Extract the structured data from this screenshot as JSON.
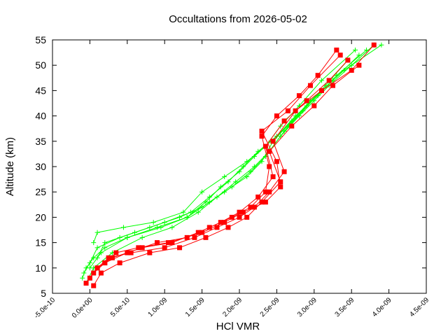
{
  "chart_data": {
    "type": "line",
    "title": "Occultations from 2026-05-02",
    "xlabel": "HCl VMR",
    "ylabel": "Altitude (km)",
    "xlim": [
      -5e-10,
      4.5e-09
    ],
    "ylim": [
      5,
      55
    ],
    "xticks": [
      -5e-10,
      0,
      5e-10,
      1e-09,
      1.5e-09,
      2e-09,
      2.5e-09,
      3e-09,
      3.5e-09,
      4e-09,
      4.5e-09
    ],
    "xtick_labels": [
      "-5.0e-10",
      "0.0e+00",
      "5.0e-10",
      "1.0e-09",
      "1.5e-09",
      "2.0e-09",
      "2.5e-09",
      "3.0e-09",
      "3.5e-09",
      "4.0e-09",
      "4.5e-09"
    ],
    "yticks": [
      5,
      10,
      15,
      20,
      25,
      30,
      35,
      40,
      45,
      50,
      55
    ],
    "ytick_labels": [
      "5",
      "10",
      "15",
      "20",
      "25",
      "30",
      "35",
      "40",
      "45",
      "50",
      "55"
    ],
    "grid": false,
    "legend": "none",
    "series": [
      {
        "color": "#00ff00",
        "marker": "plus",
        "profiles": [
          {
            "x": [
              -1e-10,
              -5e-11,
              5e-11,
              2e-10,
              5e-10,
              9e-10,
              1.3e-09,
              1.6e-09,
              1.9e-09,
              2.15e-09,
              2.35e-09,
              2.55e-09,
              2.8e-09,
              3e-09,
              3.2e-09,
              3.5e-09,
              3.8e-09
            ],
            "y": [
              8,
              10,
              12,
              14,
              16,
              18,
              20,
              23,
              26,
              29,
              32,
              36,
              40,
              43,
              46,
              50,
              54
            ]
          },
          {
            "x": [
              -8e-11,
              0.0,
              1e-10,
              4e-10,
              8e-10,
              1.2e-09,
              1.5e-09,
              1.8e-09,
              2.1e-09,
              2.3e-09,
              2.45e-09,
              2.7e-09,
              2.95e-09,
              3.25e-09,
              3.6e-09
            ],
            "y": [
              9,
              11,
              14,
              16,
              18,
              20,
              22,
              25,
              28,
              31,
              35,
              39,
              43,
              47,
              52
            ]
          },
          {
            "x": [
              -5e-11,
              5e-11,
              3e-10,
              7e-10,
              1.1e-09,
              1.45e-09,
              1.7e-09,
              1.95e-09,
              2.2e-09,
              2.4e-09,
              2.6e-09,
              2.85e-09,
              3.1e-09,
              3.4e-09,
              3.9e-09
            ],
            "y": [
              7,
              10,
              13,
              16,
              18,
              21,
              24,
              27,
              30,
              33,
              37,
              41,
              45,
              49,
              54
            ]
          },
          {
            "x": [
              1e-10,
              2e-10,
              6e-10,
              1e-09,
              1.35e-09,
              1.6e-09,
              1.85e-09,
              2.05e-09,
              2.25e-09,
              2.5e-09,
              2.75e-09,
              3.05e-09,
              3.3e-09,
              3.7e-09
            ],
            "y": [
              12,
              15,
              17,
              19,
              21,
              24,
              27,
              30,
              33,
              36,
              40,
              44,
              48,
              53
            ]
          },
          {
            "x": [
              0.0,
              1.5e-10,
              5e-10,
              9.5e-10,
              1.3e-09,
              1.55e-09,
              1.75e-09,
              2e-09,
              2.2e-09,
              2.42e-09,
              2.65e-09,
              2.9e-09,
              3.15e-09,
              3.45e-09
            ],
            "y": [
              10,
              13,
              16,
              18,
              20,
              23,
              26,
              29,
              32,
              35,
              38,
              42,
              46,
              51
            ]
          },
          {
            "x": [
              5e-11,
              1e-10,
              4.5e-10,
              8.5e-10,
              1.25e-09,
              1.5e-09,
              1.8e-09,
              2.1e-09,
              2.35e-09,
              2.55e-09,
              2.8e-09,
              3.1e-09,
              3.55e-09
            ],
            "y": [
              15,
              17,
              18,
              19,
              21,
              25,
              28,
              31,
              34,
              38,
              42,
              47,
              53
            ]
          }
        ]
      },
      {
        "color": "#ff0000",
        "marker": "filled-square",
        "profiles": [
          {
            "x": [
              -5e-11,
              5e-11,
              2e-10,
              5e-10,
              9e-10,
              1.3e-09,
              1.6e-09,
              1.9e-09,
              2.15e-09,
              2.35e-09,
              2.4e-09,
              2.3e-09,
              2.5e-09,
              2.8e-09,
              3.05e-09,
              3.3e-09
            ],
            "y": [
              7,
              9,
              11,
              13,
              15,
              16,
              18,
              20,
              22,
              25,
              30,
              36,
              40,
              44,
              48,
              53
            ]
          },
          {
            "x": [
              0.0,
              1e-10,
              3e-10,
              7e-10,
              1.1e-09,
              1.45e-09,
              1.75e-09,
              2e-09,
              2.25e-09,
              2.45e-09,
              2.35e-09,
              2.6e-09,
              2.9e-09,
              3.2e-09,
              3.45e-09
            ],
            "y": [
              8,
              10,
              12,
              14,
              15,
              17,
              19,
              21,
              24,
              28,
              34,
              39,
              43,
              47,
              51
            ]
          },
          {
            "x": [
              5e-11,
              1.5e-10,
              4e-10,
              8e-10,
              1.2e-09,
              1.55e-09,
              1.85e-09,
              2.1e-09,
              2.3e-09,
              2.55e-09,
              2.4e-09,
              2.7e-09,
              3e-09,
              3.25e-09,
              3.6e-09
            ],
            "y": [
              6.5,
              9,
              11,
              13,
              14,
              16,
              18,
              20,
              23,
              27,
              33,
              38,
              42,
              46,
              50
            ]
          },
          {
            "x": [
              1e-10,
              2.5e-10,
              5.5e-10,
              1e-09,
              1.4e-09,
              1.7e-09,
              2e-09,
              2.2e-09,
              2.4e-09,
              2.6e-09,
              2.45e-09,
              2.75e-09,
              3.1e-09,
              3.5e-09,
              3.8e-09
            ],
            "y": [
              10,
              12,
              13,
              14,
              16,
              18,
              20,
              22,
              25,
              29,
              35,
              41,
              45,
              49,
              54
            ]
          },
          {
            "x": [
              2e-10,
              3.5e-10,
              6.5e-10,
              1.05e-09,
              1.5e-09,
              1.8e-09,
              2.05e-09,
              2.35e-09,
              2.55e-09,
              2.5e-09,
              2.3e-09,
              2.65e-09,
              2.95e-09,
              3.35e-09
            ],
            "y": [
              11,
              13,
              14,
              15,
              17,
              19,
              21,
              23,
              26,
              31,
              37,
              41,
              46,
              52
            ]
          }
        ]
      }
    ]
  }
}
